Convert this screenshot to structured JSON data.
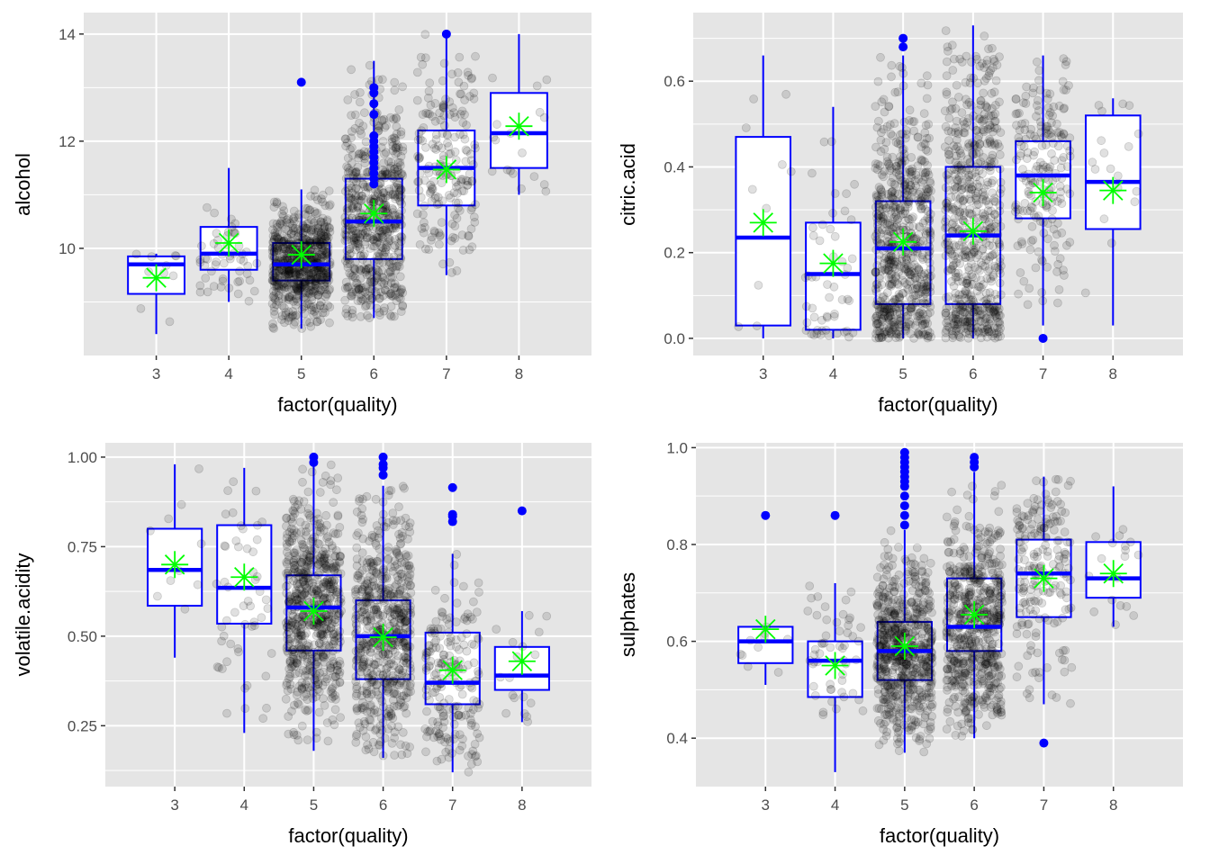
{
  "colors": {
    "panel_background": "#e5e5e5",
    "grid": "#ffffff",
    "box_outline": "#0000ff",
    "outlier": "#0000ff",
    "jitter_points": "#000000",
    "mean_marker": "#00ff00"
  },
  "chart_data": [
    {
      "type": "boxplot",
      "xlabel": "factor(quality)",
      "ylabel": "alcohol",
      "categories": [
        "3",
        "4",
        "5",
        "6",
        "7",
        "8"
      ],
      "ylim": [
        8.0,
        14.4
      ],
      "yticks": [
        10,
        12,
        14
      ],
      "yminor": [
        9,
        11,
        13
      ],
      "boxes": [
        {
          "q1": 9.15,
          "median": 9.7,
          "q3": 9.85,
          "whisker_low": 8.4,
          "whisker_high": 9.9,
          "mean": 9.45
        },
        {
          "q1": 9.6,
          "median": 9.9,
          "q3": 10.4,
          "whisker_low": 9.0,
          "whisker_high": 11.5,
          "mean": 10.1
        },
        {
          "q1": 9.4,
          "median": 9.7,
          "q3": 10.1,
          "whisker_low": 8.5,
          "whisker_high": 11.1,
          "mean": 9.88
        },
        {
          "q1": 9.8,
          "median": 10.5,
          "q3": 11.3,
          "whisker_low": 8.7,
          "whisker_high": 13.5,
          "mean": 10.65
        },
        {
          "q1": 10.8,
          "median": 11.5,
          "q3": 12.2,
          "whisker_low": 9.5,
          "whisker_high": 14.0,
          "mean": 11.47
        },
        {
          "q1": 11.5,
          "median": 12.15,
          "q3": 12.9,
          "whisker_low": 11.0,
          "whisker_high": 14.0,
          "mean": 12.28
        }
      ],
      "outliers": [
        [
          2,
          13.1
        ],
        [
          3,
          11.2
        ],
        [
          3,
          11.3
        ],
        [
          3,
          11.4
        ],
        [
          3,
          11.5
        ],
        [
          3,
          11.6
        ],
        [
          3,
          11.7
        ],
        [
          3,
          11.8
        ],
        [
          3,
          11.9
        ],
        [
          3,
          12.0
        ],
        [
          3,
          12.1
        ],
        [
          3,
          12.5
        ],
        [
          3,
          12.7
        ],
        [
          3,
          12.9
        ],
        [
          3,
          13.0
        ],
        [
          4,
          14.0
        ]
      ],
      "jitter_counts": [
        10,
        53,
        681,
        638,
        199,
        18
      ]
    },
    {
      "type": "boxplot",
      "xlabel": "factor(quality)",
      "ylabel": "citric.acid",
      "categories": [
        "3",
        "4",
        "5",
        "6",
        "7",
        "8"
      ],
      "ylim": [
        -0.04,
        0.76
      ],
      "yticks": [
        0.0,
        0.2,
        0.4,
        0.6
      ],
      "ytick_labels": [
        "0.0",
        "0.2",
        "0.4",
        "0.6"
      ],
      "yminor": [
        0.1,
        0.3,
        0.5,
        0.7
      ],
      "boxes": [
        {
          "q1": 0.03,
          "median": 0.235,
          "q3": 0.47,
          "whisker_low": 0.0,
          "whisker_high": 0.66,
          "mean": 0.27
        },
        {
          "q1": 0.02,
          "median": 0.15,
          "q3": 0.27,
          "whisker_low": 0.0,
          "whisker_high": 0.54,
          "mean": 0.175
        },
        {
          "q1": 0.08,
          "median": 0.21,
          "q3": 0.32,
          "whisker_low": 0.0,
          "whisker_high": 0.66,
          "mean": 0.225
        },
        {
          "q1": 0.08,
          "median": 0.24,
          "q3": 0.4,
          "whisker_low": 0.0,
          "whisker_high": 0.73,
          "mean": 0.25
        },
        {
          "q1": 0.28,
          "median": 0.38,
          "q3": 0.46,
          "whisker_low": 0.03,
          "whisker_high": 0.66,
          "mean": 0.34
        },
        {
          "q1": 0.255,
          "median": 0.365,
          "q3": 0.52,
          "whisker_low": 0.03,
          "whisker_high": 0.56,
          "mean": 0.345
        }
      ],
      "outliers": [
        [
          2,
          0.68
        ],
        [
          2,
          0.7
        ],
        [
          4,
          0.0
        ]
      ],
      "jitter_counts": [
        10,
        53,
        681,
        638,
        199,
        18
      ]
    },
    {
      "type": "boxplot",
      "xlabel": "factor(quality)",
      "ylabel": "volatile.acidity",
      "categories": [
        "3",
        "4",
        "5",
        "6",
        "7",
        "8"
      ],
      "ylim": [
        0.08,
        1.04
      ],
      "yticks": [
        0.25,
        0.5,
        0.75,
        1.0
      ],
      "ytick_labels": [
        "0.25",
        "0.50",
        "0.75",
        "1.00"
      ],
      "yminor": [
        0.125,
        0.375,
        0.625,
        0.875
      ],
      "boxes": [
        {
          "q1": 0.585,
          "median": 0.685,
          "q3": 0.8,
          "whisker_low": 0.44,
          "whisker_high": 0.98,
          "mean": 0.7
        },
        {
          "q1": 0.535,
          "median": 0.635,
          "q3": 0.81,
          "whisker_low": 0.23,
          "whisker_high": 0.97,
          "mean": 0.665
        },
        {
          "q1": 0.46,
          "median": 0.58,
          "q3": 0.67,
          "whisker_low": 0.18,
          "whisker_high": 0.98,
          "mean": 0.57
        },
        {
          "q1": 0.38,
          "median": 0.5,
          "q3": 0.6,
          "whisker_low": 0.16,
          "whisker_high": 0.92,
          "mean": 0.497
        },
        {
          "q1": 0.31,
          "median": 0.37,
          "q3": 0.51,
          "whisker_low": 0.12,
          "whisker_high": 0.73,
          "mean": 0.405
        },
        {
          "q1": 0.35,
          "median": 0.39,
          "q3": 0.47,
          "whisker_low": 0.26,
          "whisker_high": 0.57,
          "mean": 0.43
        }
      ],
      "outliers": [
        [
          2,
          0.985
        ],
        [
          2,
          1.0
        ],
        [
          3,
          0.95
        ],
        [
          3,
          0.97
        ],
        [
          3,
          0.98
        ],
        [
          3,
          1.0
        ],
        [
          4,
          0.82
        ],
        [
          4,
          0.835
        ],
        [
          4,
          0.84
        ],
        [
          4,
          0.915
        ],
        [
          5,
          0.85
        ]
      ],
      "jitter_counts": [
        10,
        53,
        681,
        638,
        199,
        18
      ]
    },
    {
      "type": "boxplot",
      "xlabel": "factor(quality)",
      "ylabel": "sulphates",
      "categories": [
        "3",
        "4",
        "5",
        "6",
        "7",
        "8"
      ],
      "ylim": [
        0.3,
        1.01
      ],
      "yticks": [
        0.4,
        0.6,
        0.8,
        1.0
      ],
      "ytick_labels": [
        "0.4",
        "0.6",
        "0.8",
        "1.0"
      ],
      "yminor": [
        0.5,
        0.7,
        0.9
      ],
      "boxes": [
        {
          "q1": 0.555,
          "median": 0.6,
          "q3": 0.63,
          "whisker_low": 0.51,
          "whisker_high": 0.63,
          "mean": 0.625
        },
        {
          "q1": 0.485,
          "median": 0.56,
          "q3": 0.6,
          "whisker_low": 0.33,
          "whisker_high": 0.72,
          "mean": 0.55
        },
        {
          "q1": 0.52,
          "median": 0.58,
          "q3": 0.64,
          "whisker_low": 0.37,
          "whisker_high": 0.83,
          "mean": 0.59
        },
        {
          "q1": 0.58,
          "median": 0.63,
          "q3": 0.73,
          "whisker_low": 0.4,
          "whisker_high": 0.95,
          "mean": 0.655
        },
        {
          "q1": 0.65,
          "median": 0.74,
          "q3": 0.81,
          "whisker_low": 0.47,
          "whisker_high": 0.94,
          "mean": 0.73
        },
        {
          "q1": 0.69,
          "median": 0.73,
          "q3": 0.805,
          "whisker_low": 0.63,
          "whisker_high": 0.92,
          "mean": 0.74
        }
      ],
      "outliers": [
        [
          0,
          0.86
        ],
        [
          1,
          0.86
        ],
        [
          2,
          0.84
        ],
        [
          2,
          0.86
        ],
        [
          2,
          0.88
        ],
        [
          2,
          0.9
        ],
        [
          2,
          0.92
        ],
        [
          2,
          0.93
        ],
        [
          2,
          0.94
        ],
        [
          2,
          0.95
        ],
        [
          2,
          0.96
        ],
        [
          2,
          0.97
        ],
        [
          2,
          0.98
        ],
        [
          2,
          0.99
        ],
        [
          3,
          0.96
        ],
        [
          3,
          0.97
        ],
        [
          3,
          0.98
        ],
        [
          4,
          0.39
        ]
      ],
      "jitter_counts": [
        10,
        53,
        681,
        638,
        199,
        18
      ]
    }
  ]
}
